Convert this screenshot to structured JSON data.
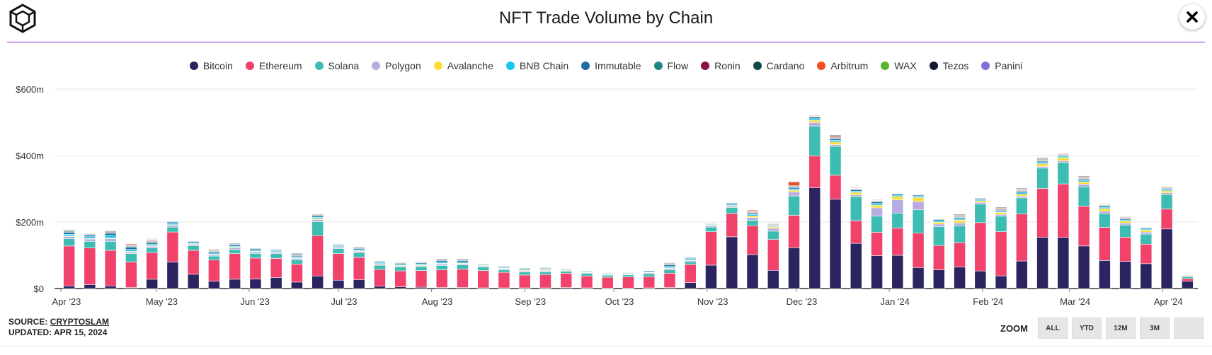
{
  "header": {
    "title": "NFT Trade Volume by Chain"
  },
  "colors": {
    "Bitcoin": "#2a2460",
    "Ethereum": "#f0426b",
    "Solana": "#3dbdb2",
    "Polygon": "#b8ace2",
    "Avalanche": "#f7de3a",
    "BNB Chain": "#19c6ec",
    "Immutable": "#1d6fa3",
    "Flow": "#1d8a80",
    "Ronin": "#8a1246",
    "Cardano": "#0f4a4a",
    "Arbitrum": "#f04e1e",
    "WAX": "#5ab52c",
    "Tezos": "#141830",
    "Panini": "#7d72db"
  },
  "legend": [
    "Bitcoin",
    "Ethereum",
    "Solana",
    "Polygon",
    "Avalanche",
    "BNB Chain",
    "Immutable",
    "Flow",
    "Ronin",
    "Cardano",
    "Arbitrum",
    "WAX",
    "Tezos",
    "Panini"
  ],
  "footer": {
    "source_prefix": "SOURCE:",
    "source_name": "CRYPTOSLAM",
    "updated": "UPDATED: APR 15, 2024"
  },
  "zoom": {
    "label": "ZOOM",
    "buttons": [
      "ALL",
      "YTD",
      "12M",
      "3M",
      ""
    ]
  },
  "chart_data": {
    "type": "bar",
    "stacked": true,
    "title": "NFT Trade Volume by Chain",
    "unit": "USD millions",
    "ylim": [
      0,
      600
    ],
    "yticks": [
      0,
      200,
      400,
      600
    ],
    "ytick_labels": [
      "$0",
      "$200m",
      "$400m",
      "$600m"
    ],
    "xtick_labels": [
      "Apr '23",
      "May '23",
      "Jun '23",
      "Jul '23",
      "Aug '23",
      "Sep '23",
      "Oct '23",
      "Nov '23",
      "Dec '23",
      "Jan '24",
      "Feb '24",
      "Mar '24",
      "Apr '24"
    ],
    "xtick_positions": [
      0,
      4.6,
      9.1,
      13.4,
      17.9,
      22.4,
      26.7,
      31.2,
      35.5,
      40,
      44.5,
      48.7,
      53.2
    ],
    "grid": true,
    "legend_position": "top-center",
    "series_names": [
      "Bitcoin",
      "Ethereum",
      "Solana",
      "Polygon",
      "Avalanche",
      "BNB Chain",
      "Immutable",
      "Flow",
      "Ronin",
      "Cardano",
      "Arbitrum",
      "WAX",
      "Tezos",
      "Panini"
    ],
    "totals": [
      178,
      168,
      176,
      135,
      150,
      205,
      146,
      120,
      139,
      125,
      122,
      108,
      225,
      136,
      128,
      86,
      81,
      83,
      92,
      92,
      78,
      69,
      65,
      65,
      64,
      56,
      50,
      51,
      59,
      80,
      98,
      197,
      262,
      237,
      198,
      322,
      523,
      462,
      305,
      270,
      290,
      287,
      213,
      223,
      276,
      245,
      302,
      393,
      408,
      339,
      256,
      218,
      188,
      308,
      45
    ],
    "values": [
      [
        8,
        12,
        8,
        3,
        28,
        80,
        43,
        22,
        28,
        28,
        33,
        18,
        38,
        25,
        26,
        7,
        5,
        4,
        3,
        3,
        2,
        2,
        2,
        2,
        3,
        2,
        1,
        1,
        2,
        3,
        18,
        70,
        155,
        100,
        52,
        122,
        304,
        268,
        135,
        98,
        100,
        63,
        56,
        63,
        53,
        38,
        82,
        155,
        155,
        128,
        82,
        82,
        74,
        178,
        22
      ],
      [
        120,
        110,
        107,
        77,
        80,
        90,
        72,
        63,
        77,
        63,
        57,
        50,
        122,
        80,
        67,
        50,
        48,
        50,
        52,
        55,
        52,
        46,
        38,
        40,
        43,
        36,
        33,
        34,
        34,
        42,
        56,
        100,
        70,
        85,
        88,
        97,
        97,
        72,
        68,
        70,
        82,
        103,
        73,
        72,
        146,
        133,
        140,
        148,
        162,
        120,
        97,
        73,
        58,
        60,
        8
      ],
      [
        22,
        20,
        27,
        25,
        14,
        15,
        14,
        12,
        12,
        14,
        14,
        12,
        42,
        15,
        14,
        13,
        12,
        12,
        13,
        13,
        11,
        8,
        9,
        8,
        6,
        8,
        6,
        6,
        9,
        10,
        8,
        14,
        18,
        16,
        24,
        58,
        90,
        87,
        72,
        48,
        45,
        70,
        56,
        50,
        56,
        47,
        48,
        62,
        65,
        58,
        40,
        37,
        30,
        43,
        6
      ],
      [
        6,
        7,
        8,
        5,
        5,
        5,
        4,
        4,
        5,
        4,
        4,
        4,
        6,
        4,
        4,
        3,
        3,
        3,
        4,
        3,
        3,
        2,
        3,
        3,
        2,
        2,
        2,
        2,
        3,
        4,
        4,
        4,
        4,
        8,
        8,
        12,
        10,
        5,
        5,
        25,
        40,
        25,
        8,
        8,
        5,
        5,
        5,
        5,
        5,
        8,
        7,
        6,
        6,
        5,
        2
      ],
      [
        2,
        2,
        2,
        2,
        2,
        2,
        2,
        2,
        2,
        2,
        2,
        2,
        3,
        2,
        2,
        2,
        2,
        2,
        2,
        2,
        2,
        2,
        2,
        2,
        2,
        1,
        1,
        1,
        1,
        2,
        2,
        2,
        2,
        5,
        4,
        5,
        7,
        8,
        7,
        8,
        10,
        12,
        6,
        8,
        5,
        6,
        6,
        8,
        10,
        7,
        8,
        6,
        6,
        6,
        2
      ],
      [
        5,
        5,
        8,
        6,
        4,
        4,
        3,
        3,
        3,
        3,
        3,
        3,
        4,
        3,
        3,
        3,
        3,
        3,
        4,
        4,
        2,
        2,
        2,
        2,
        2,
        2,
        2,
        2,
        2,
        4,
        4,
        2,
        3,
        4,
        2,
        4,
        5,
        5,
        4,
        5,
        4,
        4,
        4,
        3,
        3,
        3,
        4,
        4,
        4,
        4,
        4,
        3,
        3,
        3,
        1
      ],
      [
        6,
        5,
        6,
        6,
        4,
        4,
        3,
        4,
        4,
        4,
        3,
        3,
        4,
        3,
        3,
        3,
        3,
        3,
        4,
        4,
        2,
        3,
        3,
        2,
        2,
        2,
        2,
        2,
        3,
        4,
        3,
        2,
        3,
        4,
        2,
        4,
        5,
        5,
        4,
        5,
        4,
        3,
        4,
        4,
        3,
        3,
        4,
        4,
        3,
        4,
        4,
        3,
        3,
        3,
        1
      ],
      [
        3,
        2,
        3,
        3,
        3,
        2,
        2,
        2,
        2,
        2,
        1,
        2,
        2,
        1,
        2,
        2,
        2,
        2,
        2,
        2,
        1,
        1,
        2,
        2,
        1,
        1,
        1,
        1,
        1,
        2,
        1,
        1,
        2,
        2,
        2,
        2,
        2,
        2,
        2,
        2,
        1,
        2,
        1,
        2,
        2,
        2,
        2,
        2,
        1,
        2,
        2,
        2,
        2,
        2,
        1
      ],
      [
        2,
        2,
        2,
        2,
        2,
        1,
        1,
        2,
        2,
        1,
        1,
        2,
        2,
        1,
        2,
        1,
        1,
        2,
        2,
        2,
        1,
        1,
        1,
        2,
        1,
        1,
        1,
        1,
        1,
        2,
        1,
        1,
        1,
        2,
        2,
        2,
        1,
        2,
        2,
        2,
        1,
        1,
        1,
        2,
        1,
        2,
        2,
        2,
        2,
        2,
        1,
        2,
        1,
        2,
        1
      ],
      [
        2,
        1,
        2,
        2,
        2,
        1,
        1,
        2,
        2,
        1,
        1,
        2,
        2,
        1,
        2,
        1,
        1,
        1,
        2,
        2,
        1,
        1,
        1,
        1,
        1,
        1,
        0,
        0,
        1,
        2,
        1,
        0,
        1,
        2,
        1,
        2,
        1,
        2,
        1,
        1,
        1,
        1,
        1,
        2,
        1,
        2,
        2,
        2,
        1,
        2,
        1,
        2,
        1,
        1,
        0
      ],
      [
        1,
        1,
        2,
        3,
        2,
        1,
        1,
        2,
        1,
        1,
        1,
        1,
        1,
        1,
        1,
        1,
        1,
        1,
        1,
        1,
        1,
        0,
        1,
        1,
        1,
        0,
        1,
        1,
        1,
        2,
        1,
        0,
        1,
        3,
        2,
        10,
        2,
        3,
        2,
        2,
        1,
        1,
        1,
        2,
        1,
        2,
        2,
        2,
        2,
        2,
        2,
        2,
        1,
        2,
        0
      ],
      [
        0,
        0,
        0,
        0,
        1,
        0,
        0,
        0,
        0,
        0,
        0,
        0,
        0,
        0,
        0,
        0,
        0,
        0,
        0,
        0,
        0,
        0,
        0,
        0,
        0,
        0,
        0,
        0,
        0,
        0,
        0,
        0,
        0,
        0,
        0,
        0,
        0,
        0,
        0,
        1,
        0,
        0,
        0,
        0,
        0,
        0,
        0,
        0,
        0,
        0,
        0,
        0,
        0,
        0,
        0
      ],
      [
        1,
        1,
        1,
        1,
        1,
        0,
        0,
        1,
        1,
        1,
        1,
        1,
        0,
        0,
        1,
        0,
        0,
        0,
        1,
        1,
        0,
        0,
        0,
        0,
        0,
        0,
        0,
        0,
        1,
        1,
        1,
        0,
        1,
        1,
        1,
        2,
        1,
        2,
        1,
        1,
        1,
        1,
        1,
        2,
        1,
        2,
        2,
        2,
        1,
        2,
        1,
        1,
        1,
        1,
        0
      ],
      [
        0,
        0,
        0,
        0,
        2,
        0,
        0,
        0,
        0,
        0,
        0,
        0,
        0,
        0,
        0,
        0,
        0,
        0,
        0,
        0,
        0,
        0,
        0,
        0,
        0,
        0,
        0,
        0,
        0,
        0,
        0,
        0,
        0,
        0,
        0,
        0,
        0,
        0,
        0,
        0,
        0,
        0,
        0,
        0,
        0,
        0,
        0,
        0,
        0,
        0,
        0,
        0,
        0,
        0,
        1
      ]
    ]
  }
}
